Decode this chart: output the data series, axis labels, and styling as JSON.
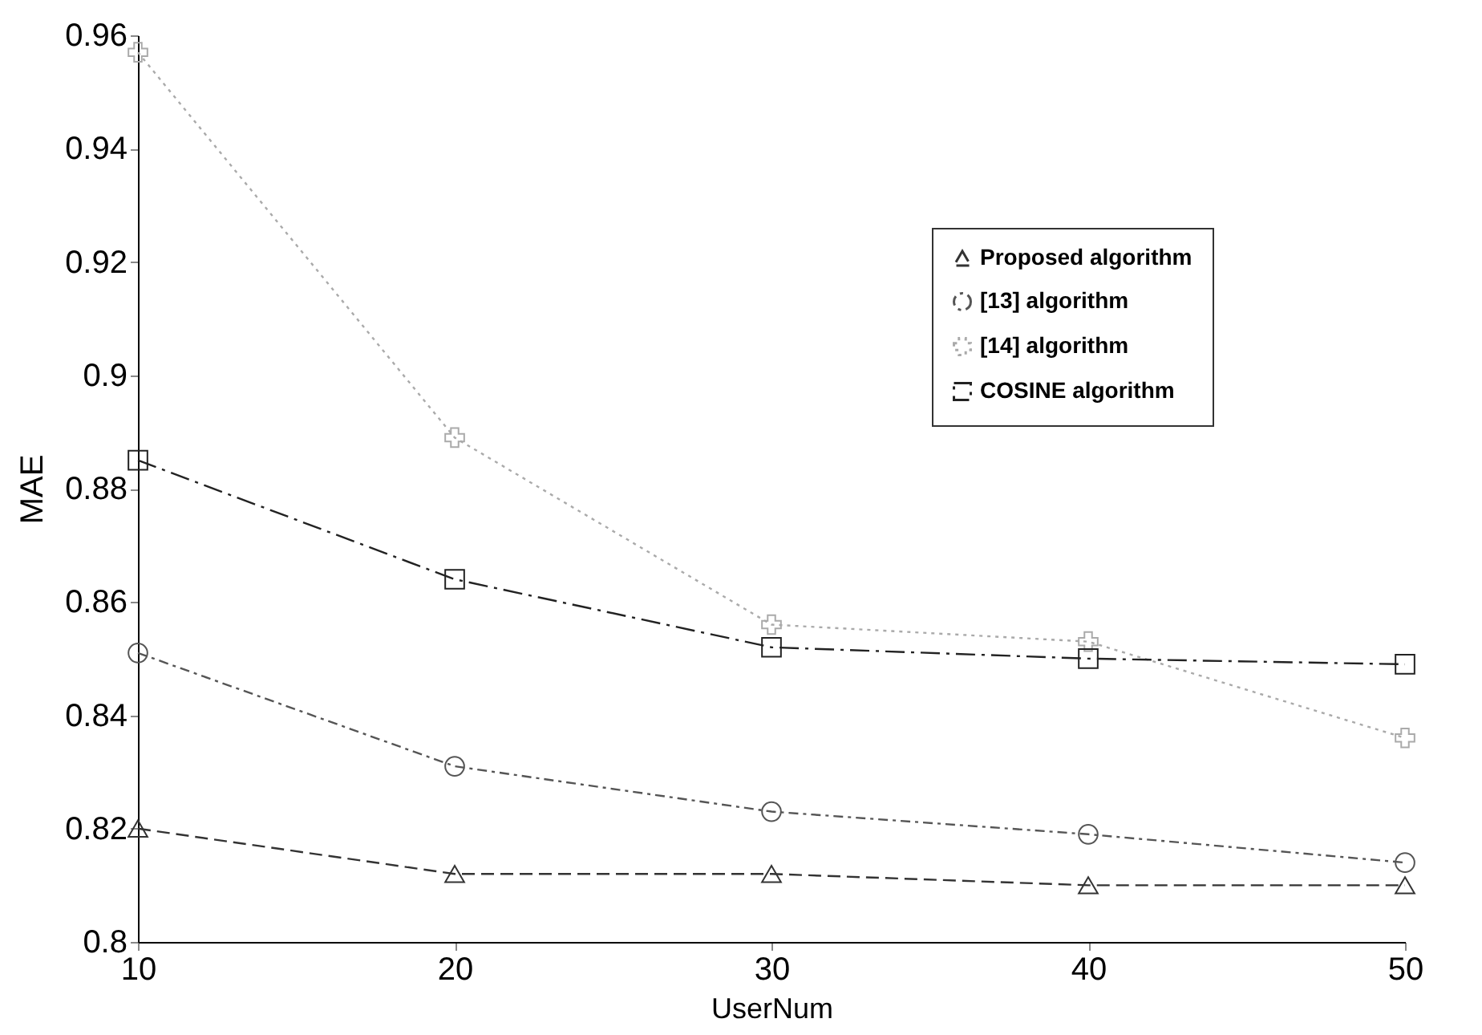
{
  "chart_data": {
    "type": "line",
    "xlabel": "UserNum",
    "ylabel": "MAE",
    "x": [
      10,
      20,
      30,
      40,
      50
    ],
    "series": [
      {
        "name": "Proposed algorithm",
        "color": "#333333",
        "marker": "triangle",
        "line_style": "dashed",
        "values": [
          0.82,
          0.812,
          0.812,
          0.81,
          0.81
        ]
      },
      {
        "name": "[13] algorithm",
        "color": "#555555",
        "marker": "circle",
        "line_style": "dashed",
        "values": [
          0.851,
          0.831,
          0.823,
          0.819,
          0.814
        ]
      },
      {
        "name": "[14] algorithm",
        "color": "#aaaaaa",
        "marker": "cross",
        "line_style": "dashed",
        "values": [
          0.957,
          0.889,
          0.856,
          0.853,
          0.836
        ]
      },
      {
        "name": "COSINE algorithm",
        "color": "#222222",
        "marker": "square",
        "line_style": "dashed",
        "values": [
          0.885,
          0.864,
          0.852,
          0.85,
          0.849
        ]
      }
    ],
    "xlim": [
      10,
      50
    ],
    "xticks": [
      10,
      20,
      30,
      40,
      50
    ],
    "ylim": [
      0.8,
      0.96
    ],
    "yticks": [
      0.8,
      0.82,
      0.84,
      0.86,
      0.88,
      0.9,
      0.92,
      0.94,
      0.96
    ],
    "grid": false,
    "legend": "top right"
  }
}
